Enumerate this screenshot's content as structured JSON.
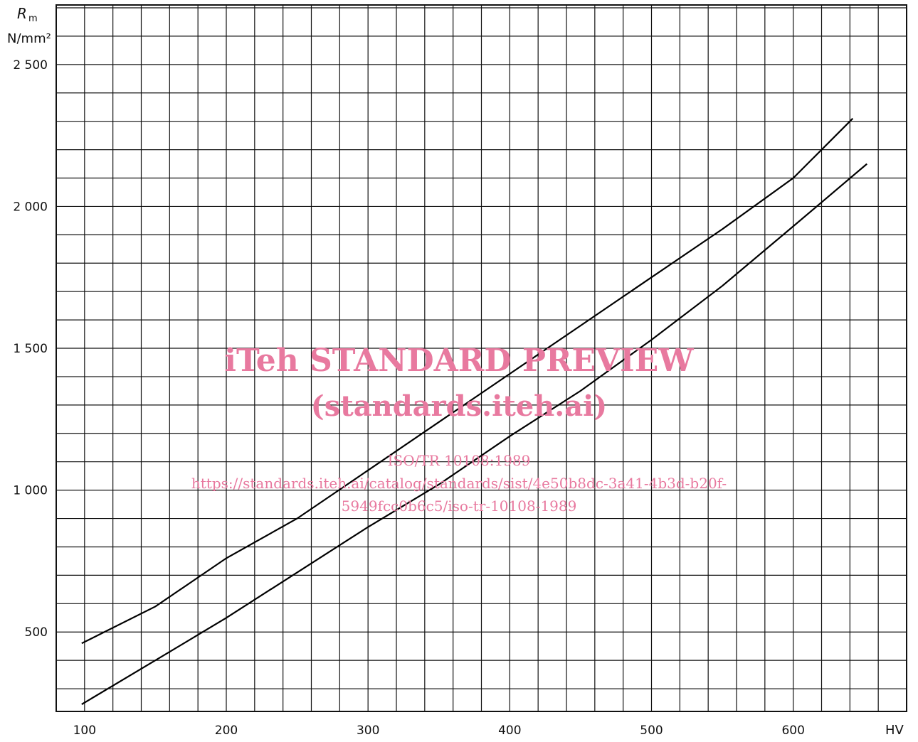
{
  "chart_data": {
    "type": "line",
    "ylabel_symbol": "R",
    "ylabel_subscript": "m",
    "ylabel_unit": "N/mm²",
    "xlabel": "HV",
    "xlim": [
      80,
      680
    ],
    "ylim": [
      220,
      2710
    ],
    "x_ticks": [
      100,
      200,
      300,
      400,
      500,
      600
    ],
    "x_tick_labels": [
      "100",
      "200",
      "300",
      "400",
      "500",
      "600"
    ],
    "y_ticks": [
      500,
      1000,
      1500,
      2000,
      2500
    ],
    "y_tick_labels": [
      "500",
      "1 000",
      "1 500",
      "2 000",
      "2 500"
    ],
    "grid": true,
    "grid_x_step": 20,
    "grid_y_step": 100,
    "series": [
      {
        "x": [
          98,
          150,
          200,
          250,
          300,
          350,
          400,
          450,
          500,
          550,
          600,
          642
        ],
        "y": [
          460,
          590,
          760,
          900,
          1070,
          1240,
          1410,
          1580,
          1750,
          1920,
          2100,
          2310
        ]
      },
      {
        "x": [
          98,
          150,
          200,
          250,
          300,
          350,
          400,
          450,
          500,
          550,
          600,
          652
        ],
        "y": [
          245,
          400,
          550,
          710,
          870,
          1020,
          1190,
          1350,
          1530,
          1720,
          1930,
          2150
        ]
      }
    ]
  },
  "watermark": {
    "title": "iTeh STANDARD PREVIEW",
    "subtitle": "(standards.iteh.ai)",
    "doc": "ISO/TR 10108:1989",
    "url_line1": "https://standards.iteh.ai/catalog/standards/sist/4e50b8dc-3a41-4b3d-b20f-",
    "url_line2": "5949fcc0b6c5/iso-tr-10108-1989"
  }
}
